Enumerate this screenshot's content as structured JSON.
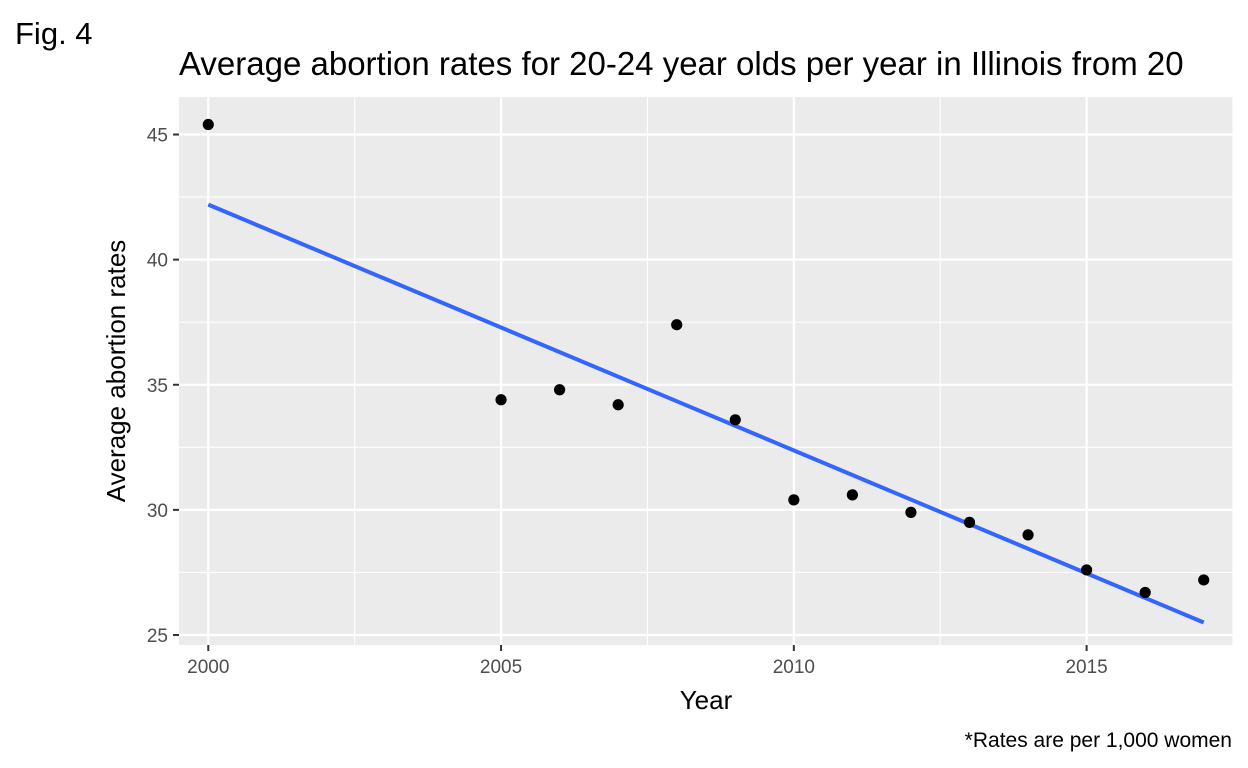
{
  "figure_label": "Fig. 4",
  "caption": "*Rates are per 1,000 women",
  "chart_data": {
    "type": "scatter",
    "title": "Average abortion rates for 20-24 year olds per year in Illinois from 20",
    "xlabel": "Year",
    "ylabel": "Average abortion rates",
    "xlim": [
      1999.5,
      2017.5
    ],
    "ylim": [
      24.6,
      46.5
    ],
    "x_ticks": [
      2000,
      2005,
      2010,
      2015
    ],
    "y_ticks": [
      25,
      30,
      35,
      40,
      45
    ],
    "grid": true,
    "points": [
      {
        "x": 2000,
        "y": 45.4
      },
      {
        "x": 2005,
        "y": 34.4
      },
      {
        "x": 2006,
        "y": 34.8
      },
      {
        "x": 2007,
        "y": 34.2
      },
      {
        "x": 2008,
        "y": 37.4
      },
      {
        "x": 2009,
        "y": 33.6
      },
      {
        "x": 2010,
        "y": 30.4
      },
      {
        "x": 2011,
        "y": 30.6
      },
      {
        "x": 2012,
        "y": 29.9
      },
      {
        "x": 2013,
        "y": 29.5
      },
      {
        "x": 2014,
        "y": 29.0
      },
      {
        "x": 2015,
        "y": 27.6
      },
      {
        "x": 2016,
        "y": 26.7
      },
      {
        "x": 2017,
        "y": 27.2
      }
    ],
    "trend_line": {
      "x": [
        2000,
        2017
      ],
      "y": [
        42.2,
        25.5
      ]
    },
    "colors": {
      "panel": "#ebebeb",
      "grid": "#ffffff",
      "points": "#000000",
      "trend": "#3366ff"
    }
  }
}
